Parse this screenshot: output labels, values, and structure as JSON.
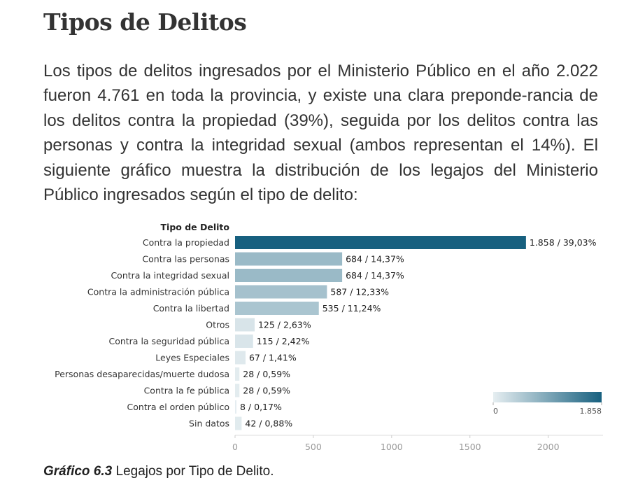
{
  "heading": "Tipos de Delitos",
  "paragraph": "Los tipos de delitos ingresados por el Ministerio Público en el año 2.022 fueron 4.761 en toda la provincia, y existe una clara preponde-rancia de los delitos contra la propiedad (39%), seguida por los delitos contra las personas y contra la integridad sexual (ambos representan el 14%). El siguiente gráfico muestra la distribución de los legajos del Ministerio Público ingresados según el tipo de delito:",
  "caption": {
    "label": "Gráfico 6.3",
    "text": " Legajos por Tipo de Delito."
  },
  "colors": {
    "scale_min": "#e6eef1",
    "scale_max": "#17607f",
    "text": "#333333",
    "axis": "#999999"
  },
  "chart_data": {
    "type": "bar",
    "orientation": "horizontal",
    "title": "Tipo de Delito",
    "categories": [
      "Contra la propiedad",
      "Contra las personas",
      "Contra la integridad sexual",
      "Contra la administración pública",
      "Contra la libertad",
      "Otros",
      "Contra la seguridad pública",
      "Leyes Especiales",
      "Personas desaparecidas/muerte dudosa",
      "Contra la fe pública",
      "Contra el orden público",
      "Sin datos"
    ],
    "values": [
      1858,
      684,
      684,
      587,
      535,
      125,
      115,
      67,
      28,
      28,
      8,
      42
    ],
    "labels": [
      "1.858 / 39,03%",
      "684 / 14,37%",
      "684 / 14,37%",
      "587 / 12,33%",
      "535 / 11,24%",
      "125 / 2,63%",
      "115 / 2,42%",
      "67 / 1,41%",
      "28 / 0,59%",
      "28 / 0,59%",
      "8 / 0,17%",
      "42 / 0,88%"
    ],
    "xlim": [
      0,
      2350
    ],
    "xticks": [
      0,
      500,
      1000,
      1500,
      2000
    ],
    "xtick_labels": [
      "0",
      "500",
      "1000",
      "1500",
      "2000"
    ],
    "legend": {
      "type": "color-gradient",
      "min_label": "0",
      "max_label": "1.858",
      "min": 0,
      "max": 1858,
      "placement": "bottom-right"
    }
  }
}
